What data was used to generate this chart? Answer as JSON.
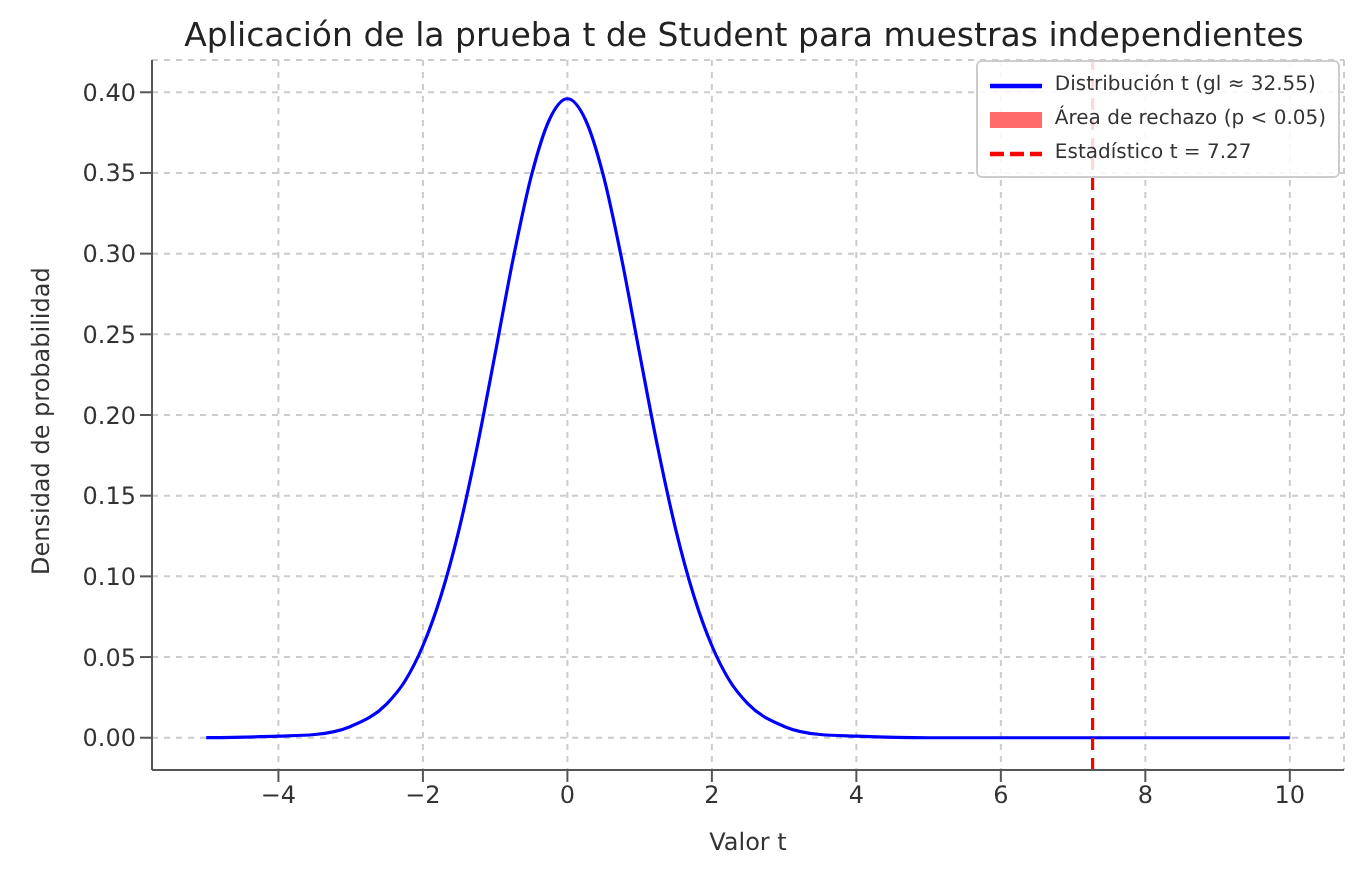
{
  "chart_data": {
    "type": "line",
    "title": "Aplicación de la prueba t de Student para muestras independientes",
    "xlabel": "Valor t",
    "ylabel": "Densidad de probabilidad",
    "series": [
      {
        "name": "Distribución t (gl ≈ 32.55)",
        "color": "#0000ff",
        "x": [
          -5,
          -4,
          -3.5,
          -3,
          -2.5,
          -2.25,
          -2,
          -1.75,
          -1.5,
          -1.25,
          -1,
          -0.75,
          -0.5,
          -0.25,
          0,
          0.25,
          0.5,
          0.75,
          1,
          1.25,
          1.5,
          1.75,
          2,
          2.25,
          2.5,
          3,
          3.5,
          4,
          5,
          6,
          8,
          10
        ],
        "values": [
          0,
          0.001,
          0.002,
          0.007,
          0.021,
          0.035,
          0.057,
          0.088,
          0.129,
          0.18,
          0.238,
          0.297,
          0.348,
          0.383,
          0.396,
          0.383,
          0.348,
          0.297,
          0.238,
          0.18,
          0.129,
          0.088,
          0.057,
          0.035,
          0.021,
          0.007,
          0.002,
          0.001,
          0,
          0,
          0,
          0
        ]
      },
      {
        "name": "Área de rechazo (p < 0.05)",
        "type": "area",
        "color": "#ff6b6b"
      }
    ],
    "ref_lines": [
      {
        "axis": "x",
        "value": 7.27,
        "label": "Estadístico t = 7.27",
        "color": "#ff0000",
        "line_style": "dashed"
      }
    ],
    "xlim": [
      -5.75,
      10.75
    ],
    "xticks": [
      {
        "value": -4,
        "label": "−4"
      },
      {
        "value": -2,
        "label": "−2"
      },
      0,
      2,
      4,
      6,
      8,
      10
    ],
    "ylim": [
      -0.02,
      0.42
    ],
    "yticks": [
      {
        "value": 0,
        "label": "0.00"
      },
      0.05,
      {
        "value": 0.1,
        "label": "0.10"
      },
      0.15,
      {
        "value": 0.2,
        "label": "0.20"
      },
      0.25,
      {
        "value": 0.3,
        "label": "0.30"
      },
      0.35,
      {
        "value": 0.4,
        "label": "0.40"
      }
    ],
    "grid": true,
    "legend": "top right",
    "marker": "none",
    "line_style": "solid"
  }
}
